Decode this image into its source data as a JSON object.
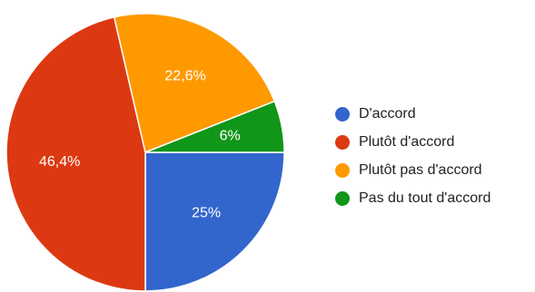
{
  "chart_data": {
    "type": "pie",
    "title": "",
    "slices": [
      {
        "label": "D'accord",
        "value": 25,
        "display": "25%",
        "color": "#3366cc"
      },
      {
        "label": "Plutôt d'accord",
        "value": 46.4,
        "display": "46,4%",
        "color": "#dc3912"
      },
      {
        "label": "Plutôt pas d'accord",
        "value": 22.6,
        "display": "22,6%",
        "color": "#ff9900"
      },
      {
        "label": "Pas du tout d'accord",
        "value": 6,
        "display": "6%",
        "color": "#109618"
      }
    ],
    "legend_position": "right"
  }
}
